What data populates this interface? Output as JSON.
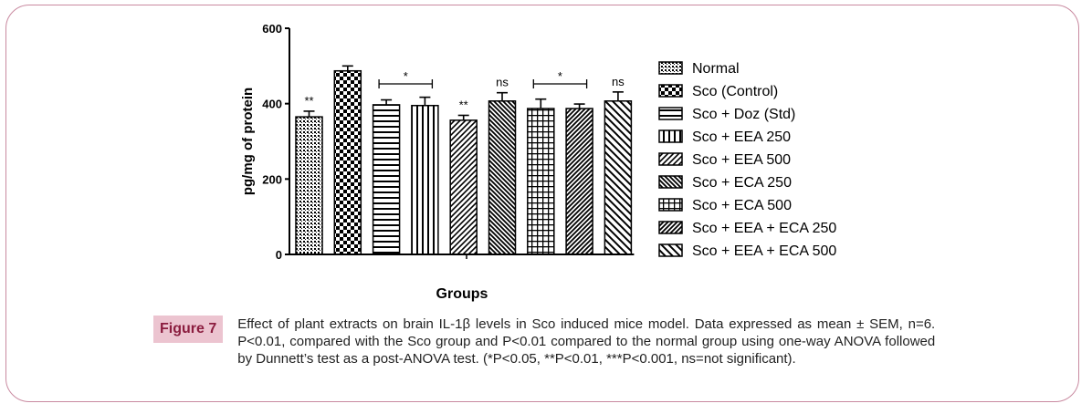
{
  "chart_data": {
    "type": "bar",
    "title": "",
    "xlabel": "Groups",
    "ylabel": "pg/mg of protein",
    "ylim": [
      0,
      600
    ],
    "yticks": [
      0,
      200,
      400,
      600
    ],
    "grid": false,
    "legend_position": "right",
    "categories": [
      "Normal",
      "Sco (Control)",
      "Sco + Doz (Std)",
      "Sco + EEA 250",
      "Sco + EEA 500",
      "Sco + ECA 250",
      "Sco + ECA 500",
      "Sco + EEA + ECA 250",
      "Sco + EEA + ECA 500"
    ],
    "values": [
      365,
      487,
      397,
      395,
      356,
      407,
      387,
      387,
      407
    ],
    "errors": [
      15,
      13,
      13,
      22,
      13,
      22,
      25,
      12,
      24
    ],
    "patterns": [
      "dots",
      "checker",
      "hlines",
      "vlines",
      "diag-fwd",
      "diag-back-dense",
      "grid",
      "diag-fwd-dense",
      "diag-back"
    ],
    "significance": [
      {
        "label": "**",
        "bar": 0
      },
      {
        "label": "*",
        "bracket": [
          2,
          3
        ]
      },
      {
        "label": "**",
        "bar": 4
      },
      {
        "label": "ns",
        "bar": 5
      },
      {
        "label": "*",
        "bracket": [
          6,
          7
        ]
      },
      {
        "label": "ns",
        "bar": 8
      }
    ]
  },
  "caption": {
    "label": "Figure 7",
    "text": "Effect of plant extracts on brain IL-1β levels in Sco induced mice model. Data expressed as mean ± SEM, n=6. P<0.01, compared with the Sco group and P<0.01 compared to the normal group using one-way ANOVA followed by Dunnett’s test as a post-ANOVA test. (*P<0.05, **P<0.01, ***P<0.001, ns=not significant)."
  }
}
